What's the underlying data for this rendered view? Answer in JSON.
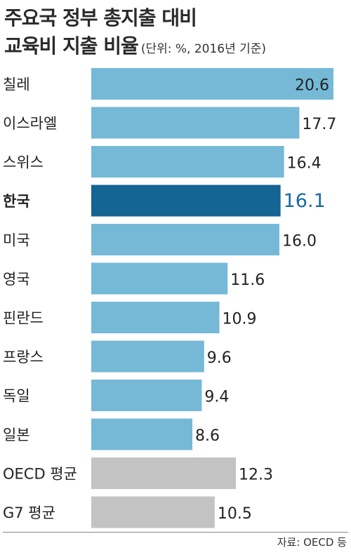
{
  "header": {
    "title_line1": "주요국 정부 총지출 대비",
    "title_line2": "교육비 지출 비율",
    "unit": "(단위: %, 2016년 기준)"
  },
  "source": "자료: OECD 등",
  "colors": {
    "bar": "#75b9d7",
    "highlight": "#146494",
    "average": "#c3c3c3",
    "highlight_text": "#1a6aa0"
  },
  "chart_data": {
    "type": "bar",
    "orientation": "horizontal",
    "categories": [
      "칠레",
      "이스라엘",
      "스위스",
      "한국",
      "미국",
      "영국",
      "핀란드",
      "프랑스",
      "독일",
      "일본",
      "OECD 평균",
      "G7 평균"
    ],
    "values": [
      20.6,
      17.7,
      16.4,
      16.1,
      16.0,
      11.6,
      10.9,
      9.6,
      9.4,
      8.6,
      12.3,
      10.5
    ],
    "value_labels": [
      "20.6",
      "17.7",
      "16.4",
      "16.1",
      "16.0",
      "11.6",
      "10.9",
      "9.6",
      "9.4",
      "8.6",
      "12.3",
      "10.5"
    ],
    "highlight": [
      "한국"
    ],
    "averages": [
      "OECD 평균",
      "G7 평균"
    ],
    "xlim": [
      0,
      20.6
    ]
  }
}
